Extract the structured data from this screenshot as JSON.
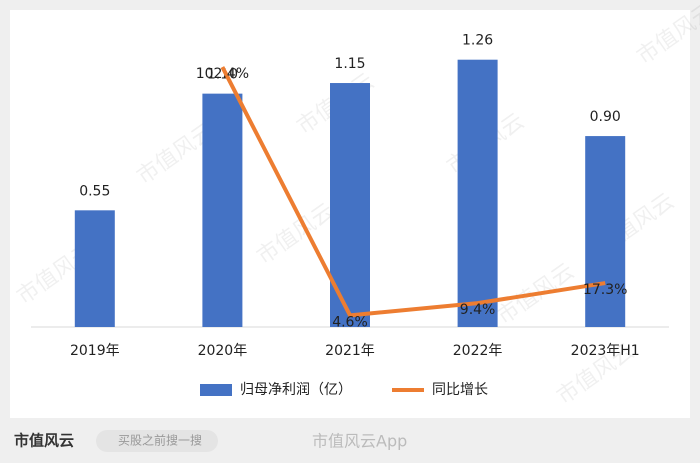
{
  "chart_data": {
    "type": "bar-line",
    "categories": [
      "2019年",
      "2020年",
      "2021年",
      "2022年",
      "2023年H1"
    ],
    "series": [
      {
        "name": "归母净利润（亿）",
        "type": "bar",
        "color": "#4472c4",
        "values": [
          0.55,
          1.1,
          1.15,
          1.26,
          0.9
        ],
        "value_labels": [
          "0.55",
          "1.10",
          "1.15",
          "1.26",
          "0.90"
        ]
      },
      {
        "name": "同比增长",
        "type": "line",
        "axis": "y2",
        "color": "#ed7d31",
        "values": [
          null,
          102.4,
          4.6,
          9.4,
          17.3
        ],
        "value_labels": [
          null,
          "102.4%",
          "4.6%",
          "9.4%",
          "17.3%"
        ]
      }
    ],
    "ylim": [
      0,
      1.4
    ],
    "y2lim": [
      0,
      117
    ],
    "legend": "bottom"
  },
  "watermark": "市值风云",
  "footer": {
    "logo": "市值风云",
    "search": "买股之前搜一搜",
    "source": "市值风云App"
  }
}
